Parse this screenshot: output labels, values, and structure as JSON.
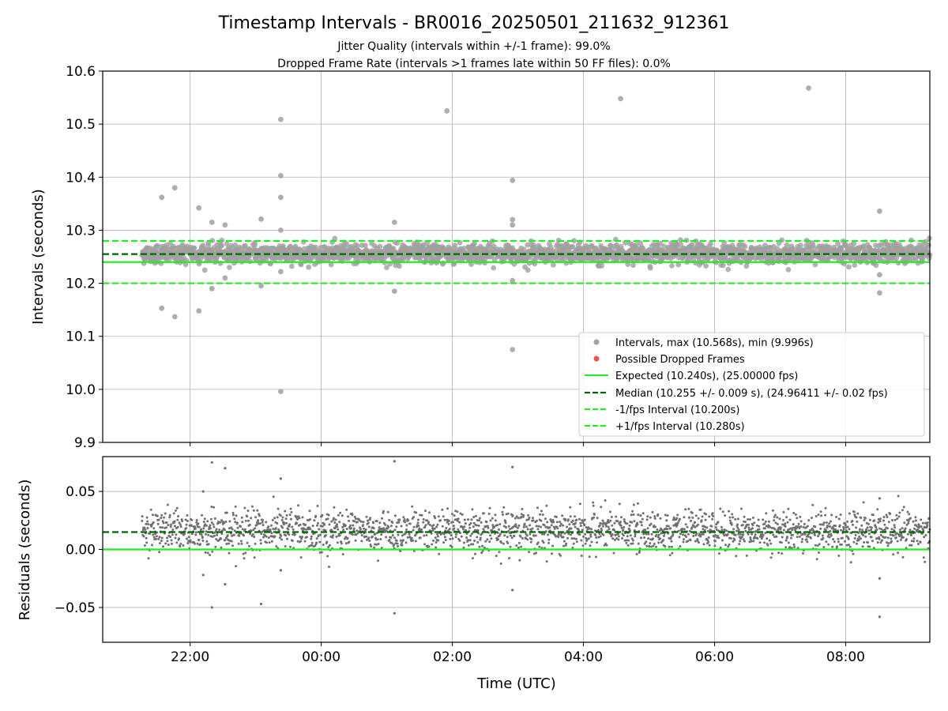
{
  "chart_data": {
    "type": "scatter",
    "title": "Timestamp Intervals - BR0016_20250501_211632_912361",
    "subtitle_lines": [
      "Jitter Quality (intervals within +/-1 frame): 99.0%",
      "Dropped Frame Rate (intervals >1 frames late within 50 FF files): 0.0%"
    ],
    "xlabel": "Time (UTC)",
    "x_axis": {
      "type": "time",
      "start": "2025-05-01T20:40",
      "end": "2025-05-02T09:17",
      "ticks": [
        {
          "time": "2025-05-01T22:00",
          "label": "22:00"
        },
        {
          "time": "2025-05-02T00:00",
          "label": "00:00"
        },
        {
          "time": "2025-05-02T02:00",
          "label": "02:00"
        },
        {
          "time": "2025-05-02T04:00",
          "label": "04:00"
        },
        {
          "time": "2025-05-02T06:00",
          "label": "06:00"
        },
        {
          "time": "2025-05-02T08:00",
          "label": "08:00"
        }
      ]
    },
    "top_panel": {
      "ylabel": "Intervals (seconds)",
      "ylim": [
        9.9,
        10.6
      ],
      "yticks": [
        "9.9",
        "10.0",
        "10.1",
        "10.2",
        "10.3",
        "10.4",
        "10.5",
        "10.6"
      ],
      "grid": true,
      "reference_lines": [
        {
          "name": "Expected (10.240s), (25.00000 fps)",
          "value": 10.24,
          "style": "solid",
          "color": "#22ee22"
        },
        {
          "name": "Median (10.255 +/- 0.009 s), (24.96411 +/- 0.02 fps)",
          "value": 10.255,
          "style": "dashed",
          "color": "#006400"
        },
        {
          "name": "-1/fps Interval (10.200s)",
          "value": 10.2,
          "style": "dashed",
          "color": "#22ee22"
        },
        {
          "name": "+1/fps Interval (10.280s)",
          "value": 10.28,
          "style": "dashed",
          "color": "#22ee22"
        }
      ],
      "series": [
        {
          "name": "Intervals, max (10.568s), min (9.996s)",
          "color": "#a0a0a0",
          "band_center": 10.256,
          "band_spread": 0.009,
          "data_start": "2025-05-01T21:16",
          "data_end": "2025-05-02T09:17"
        },
        {
          "name": "Possible Dropped Frames",
          "color": "#f05050",
          "points": []
        }
      ],
      "outliers": [
        {
          "time": "2025-05-01T21:34",
          "value": 10.362
        },
        {
          "time": "2025-05-01T21:34",
          "value": 10.153
        },
        {
          "time": "2025-05-01T21:46",
          "value": 10.38
        },
        {
          "time": "2025-05-01T21:46",
          "value": 10.137
        },
        {
          "time": "2025-05-01T22:08",
          "value": 10.342
        },
        {
          "time": "2025-05-01T22:08",
          "value": 10.148
        },
        {
          "time": "2025-05-01T22:20",
          "value": 10.315
        },
        {
          "time": "2025-05-01T22:20",
          "value": 10.19
        },
        {
          "time": "2025-05-01T22:32",
          "value": 10.31
        },
        {
          "time": "2025-05-01T22:32",
          "value": 10.21
        },
        {
          "time": "2025-05-01T23:05",
          "value": 10.321
        },
        {
          "time": "2025-05-01T23:05",
          "value": 10.195
        },
        {
          "time": "2025-05-01T23:23",
          "value": 10.509
        },
        {
          "time": "2025-05-01T23:23",
          "value": 10.403
        },
        {
          "time": "2025-05-01T23:23",
          "value": 10.362
        },
        {
          "time": "2025-05-01T23:23",
          "value": 10.3
        },
        {
          "time": "2025-05-01T23:23",
          "value": 10.222
        },
        {
          "time": "2025-05-01T23:23",
          "value": 9.996
        },
        {
          "time": "2025-05-02T01:07",
          "value": 10.315
        },
        {
          "time": "2025-05-02T01:07",
          "value": 10.185
        },
        {
          "time": "2025-05-02T01:55",
          "value": 10.525
        },
        {
          "time": "2025-05-02T02:55",
          "value": 10.394
        },
        {
          "time": "2025-05-02T02:55",
          "value": 10.32
        },
        {
          "time": "2025-05-02T02:55",
          "value": 10.31
        },
        {
          "time": "2025-05-02T02:55",
          "value": 10.205
        },
        {
          "time": "2025-05-02T02:55",
          "value": 10.075
        },
        {
          "time": "2025-05-02T04:34",
          "value": 10.548
        },
        {
          "time": "2025-05-02T07:26",
          "value": 10.568
        },
        {
          "time": "2025-05-02T08:31",
          "value": 10.336
        },
        {
          "time": "2025-05-02T08:31",
          "value": 10.216
        },
        {
          "time": "2025-05-02T08:31",
          "value": 10.182
        }
      ],
      "legend_placement": "lower-right"
    },
    "bottom_panel": {
      "ylabel": "Residuals (seconds)",
      "ylim": [
        -0.08,
        0.08
      ],
      "yticks": [
        "−0.05",
        "0.00",
        "0.05"
      ],
      "ytick_values": [
        -0.05,
        0,
        0.05
      ],
      "grid": true,
      "reference_lines": [
        {
          "value": 0.0,
          "style": "solid",
          "color": "#22ee22"
        },
        {
          "value": 0.015,
          "style": "dashed",
          "color": "#006400"
        }
      ],
      "series": {
        "color": "#707070",
        "band_center": 0.016,
        "band_spread": 0.009
      },
      "outliers": [
        {
          "time": "2025-05-01T22:20",
          "value": 0.075
        },
        {
          "time": "2025-05-01T22:32",
          "value": 0.07
        },
        {
          "time": "2025-05-01T22:12",
          "value": 0.05
        },
        {
          "time": "2025-05-01T22:20",
          "value": -0.05
        },
        {
          "time": "2025-05-01T22:32",
          "value": -0.03
        },
        {
          "time": "2025-05-01T22:12",
          "value": -0.022
        },
        {
          "time": "2025-05-01T23:23",
          "value": 0.061
        },
        {
          "time": "2025-05-01T23:23",
          "value": -0.018
        },
        {
          "time": "2025-05-01T23:05",
          "value": -0.047
        },
        {
          "time": "2025-05-02T01:07",
          "value": 0.076
        },
        {
          "time": "2025-05-02T01:07",
          "value": -0.055
        },
        {
          "time": "2025-05-02T02:55",
          "value": 0.071
        },
        {
          "time": "2025-05-02T02:55",
          "value": -0.035
        },
        {
          "time": "2025-05-02T08:31",
          "value": 0.044
        },
        {
          "time": "2025-05-02T08:31",
          "value": -0.025
        },
        {
          "time": "2025-05-02T08:31",
          "value": -0.058
        }
      ]
    }
  }
}
